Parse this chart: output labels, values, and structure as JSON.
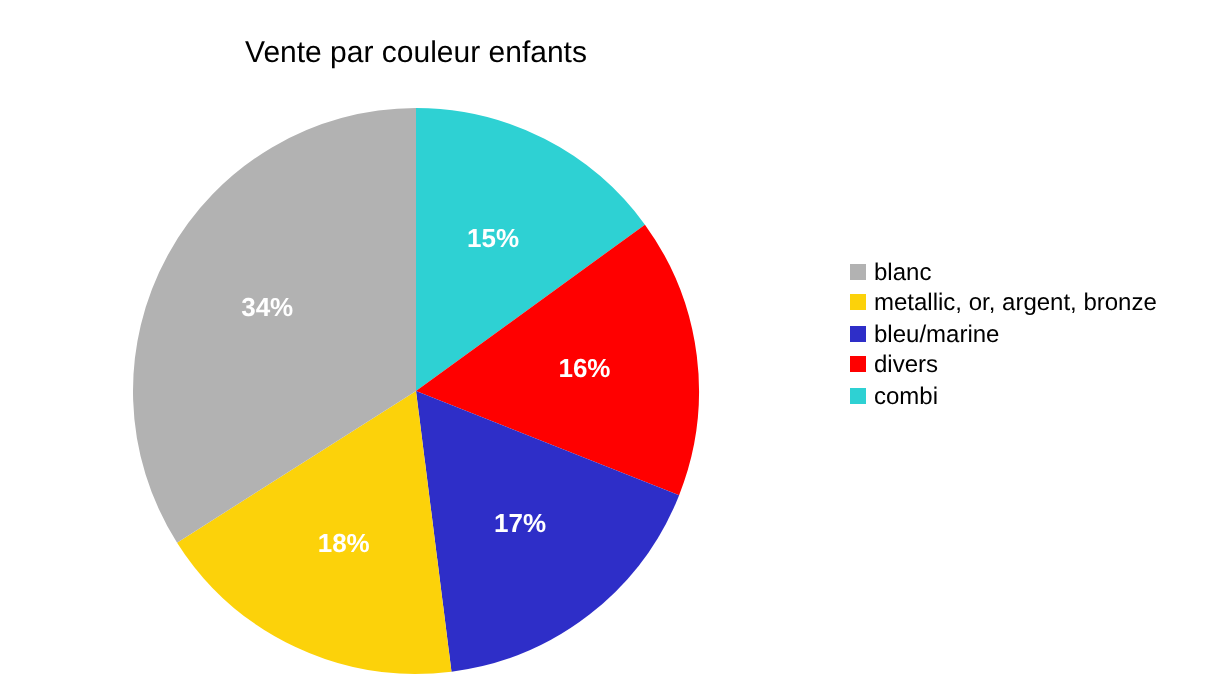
{
  "chart_data": {
    "type": "pie",
    "title": "Vente par couleur enfants",
    "categories": [
      "blanc",
      "metallic, or, argent, bronze",
      "bleu/marine",
      "divers",
      "combi"
    ],
    "values": [
      34,
      18,
      17,
      16,
      15
    ],
    "value_labels": [
      "34%",
      "18%",
      "17%",
      "16%",
      "15%"
    ],
    "colors": [
      "#b2b2b2",
      "#fcd20a",
      "#2e2ec8",
      "#ff0000",
      "#2ed1d3"
    ],
    "legend": "right"
  }
}
